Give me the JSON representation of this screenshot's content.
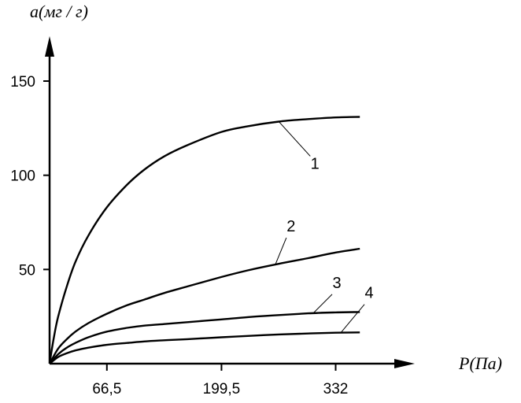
{
  "chart_data": {
    "type": "line",
    "xlabel": "P(Па)",
    "ylabel": "a(мг / г)",
    "x_ticks": [
      "66,5",
      "199,5",
      "332"
    ],
    "x_tick_values": [
      66.5,
      199.5,
      332
    ],
    "y_ticks": [
      "50",
      "100",
      "150"
    ],
    "y_tick_values": [
      50,
      100,
      150
    ],
    "xlim": [
      0,
      445
    ],
    "ylim": [
      0,
      168
    ],
    "grid": false,
    "series": [
      {
        "name": "1",
        "x": [
          0,
          5,
          10,
          20,
          30,
          45,
          66.5,
          90,
          110,
          133,
          160,
          199.5,
          230,
          266,
          300,
          332,
          360
        ],
        "y": [
          0,
          14,
          25,
          41,
          54,
          68,
          83,
          95,
          103,
          110,
          116,
          123,
          126,
          128.5,
          129.8,
          130.7,
          131
        ]
      },
      {
        "name": "2",
        "x": [
          0,
          10,
          20,
          30,
          45,
          66.5,
          90,
          110,
          133,
          160,
          199.5,
          230,
          266,
          300,
          332,
          360
        ],
        "y": [
          0,
          8,
          13,
          17,
          21.5,
          26.5,
          31,
          34,
          37.5,
          41,
          46,
          49.5,
          53,
          56,
          59,
          61
        ]
      },
      {
        "name": "3",
        "x": [
          0,
          10,
          20,
          30,
          45,
          66.5,
          90,
          110,
          133,
          160,
          199.5,
          230,
          266,
          300,
          332,
          360
        ],
        "y": [
          0,
          5,
          8.5,
          11,
          14,
          17,
          19,
          20.2,
          21,
          22,
          23.5,
          24.7,
          25.8,
          26.7,
          27.2,
          27.4
        ]
      },
      {
        "name": "4",
        "x": [
          0,
          10,
          20,
          30,
          45,
          66.5,
          90,
          110,
          133,
          160,
          199.5,
          230,
          266,
          300,
          332,
          360
        ],
        "y": [
          0,
          3.5,
          5.5,
          7,
          8.5,
          10,
          11,
          11.8,
          12.4,
          13,
          14,
          14.7,
          15.5,
          16,
          16.4,
          16.6
        ]
      }
    ],
    "annotations": [
      {
        "text": "1",
        "series": "1",
        "at_x": 266
      },
      {
        "text": "2",
        "series": "2",
        "at_x": 262
      },
      {
        "text": "3",
        "series": "3",
        "at_x": 306
      },
      {
        "text": "4",
        "series": "4",
        "at_x": 338
      }
    ]
  }
}
